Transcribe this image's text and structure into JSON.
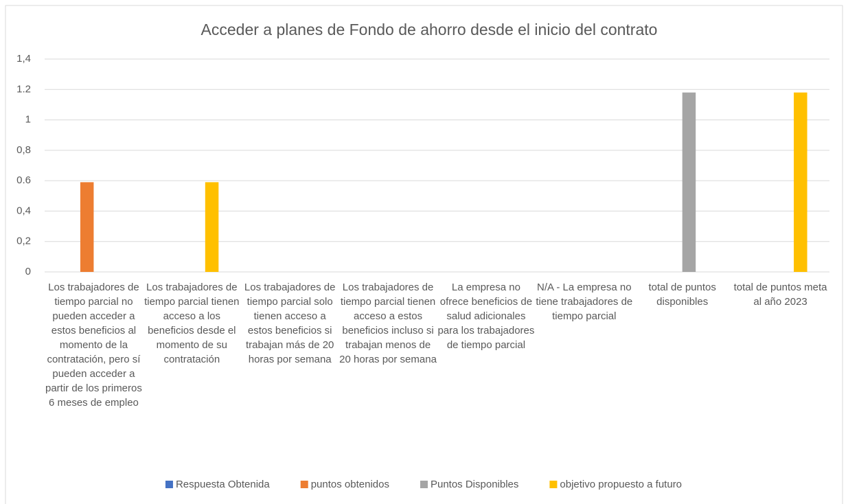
{
  "chart_data": {
    "type": "bar",
    "title": "Acceder a planes de Fondo de ahorro desde el inicio del contrato",
    "categories": [
      "Los trabajadores de tiempo parcial no pueden acceder a estos beneficios al momento de la contratación, pero sí pueden acceder a partir de los primeros 6 meses de empleo",
      "Los trabajadores de tiempo parcial tienen acceso a los beneficios desde el momento de su contratación",
      "Los trabajadores de tiempo parcial solo tienen acceso a estos beneficios si trabajan más de 20 horas por semana",
      "Los trabajadores de tiempo parcial tienen acceso a estos beneficios incluso si trabajan menos de 20 horas por semana",
      "La empresa no ofrece beneficios de salud adicionales para los trabajadores de tiempo parcial",
      "N/A - La empresa no tiene trabajadores de tiempo parcial",
      "total de puntos disponibles",
      "total de puntos meta al año 2023"
    ],
    "series": [
      {
        "name": "Respuesta Obtenida",
        "color": "#4472c4",
        "values": [
          0,
          0,
          0,
          0,
          0,
          0,
          0,
          0
        ]
      },
      {
        "name": "puntos obtenidos",
        "color": "#ed7d31",
        "values": [
          0.59,
          0,
          0,
          0,
          0,
          0,
          0,
          0
        ]
      },
      {
        "name": "Puntos Disponibles",
        "color": "#a5a5a5",
        "values": [
          0,
          0,
          0,
          0,
          0,
          0,
          1.18,
          0
        ]
      },
      {
        "name": "objetivo propuesto a futuro",
        "color": "#ffc000",
        "values": [
          0,
          0.59,
          0,
          0,
          0,
          0,
          0,
          1.18
        ]
      }
    ],
    "ylim": [
      0,
      1.4
    ],
    "yticks": [
      0,
      {
        "value": 0.2,
        "label": "0,2"
      },
      {
        "value": 0.4,
        "label": "0,4"
      },
      0.6,
      {
        "value": 0.8,
        "label": "0,8"
      },
      1,
      1.2,
      {
        "value": 1.4,
        "label": "1,4"
      }
    ],
    "grid": true,
    "legend": "bottom"
  }
}
